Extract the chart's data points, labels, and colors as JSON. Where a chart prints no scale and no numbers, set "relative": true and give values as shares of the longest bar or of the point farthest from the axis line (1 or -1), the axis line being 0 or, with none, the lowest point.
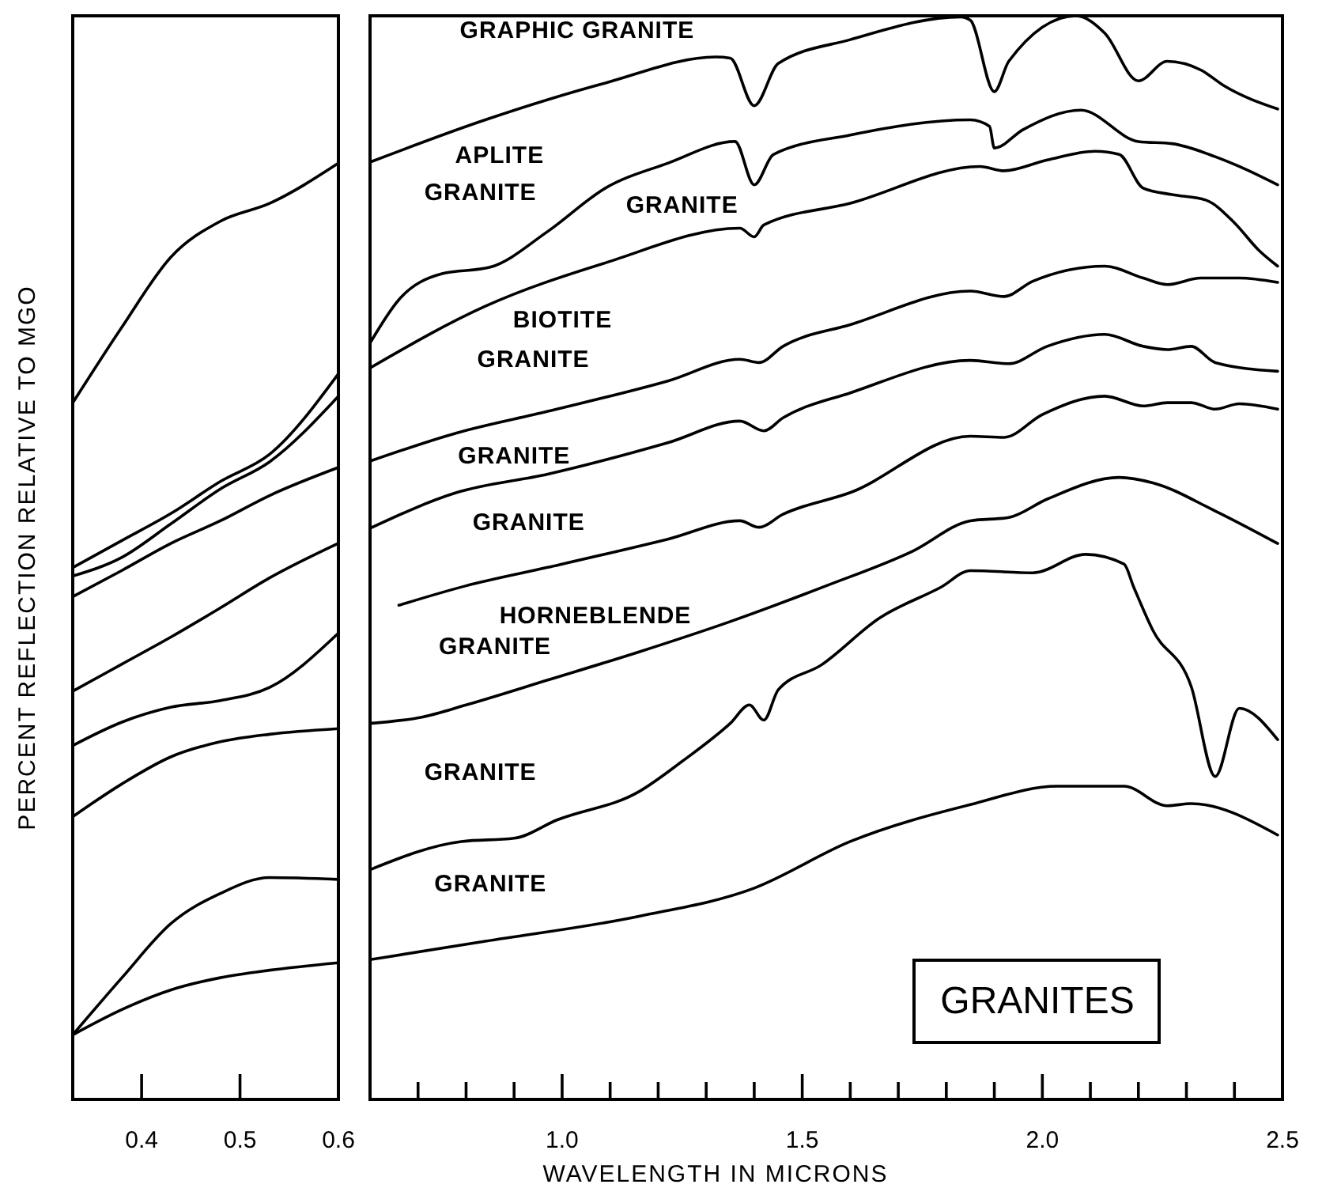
{
  "chart_data": [
    {
      "type": "line",
      "relative": true,
      "ylabel": "PERCENT REFLECTION RELATIVE TO MGO",
      "xlim": [
        0.33,
        0.6
      ],
      "xticks": [
        0.4,
        0.5,
        0.6
      ],
      "x": [
        0.33,
        0.38,
        0.43,
        0.48,
        0.53,
        0.6
      ],
      "series": [
        {
          "color": "#000000",
          "values": [
            0.744,
            0.825,
            0.9,
            0.938,
            0.957,
            1.0
          ]
        },
        {
          "color": "#000000",
          "values": [
            0.568,
            0.597,
            0.626,
            0.66,
            0.689,
            0.775
          ]
        },
        {
          "color": "#000000",
          "values": [
            0.559,
            0.579,
            0.615,
            0.652,
            0.681,
            0.751
          ]
        },
        {
          "color": "#000000",
          "values": [
            0.537,
            0.565,
            0.594,
            0.618,
            0.645,
            0.675
          ]
        },
        {
          "color": "#000000",
          "values": [
            0.436,
            0.465,
            0.494,
            0.525,
            0.557,
            0.594
          ]
        },
        {
          "color": "#000000",
          "values": [
            0.378,
            0.403,
            0.419,
            0.426,
            0.44,
            0.498
          ]
        },
        {
          "color": "#000000",
          "values": [
            0.302,
            0.337,
            0.366,
            0.382,
            0.39,
            0.396
          ]
        },
        {
          "color": "#000000",
          "values": [
            0.069,
            0.13,
            0.188,
            0.22,
            0.237,
            0.235
          ]
        },
        {
          "color": "#000000",
          "values": [
            0.069,
            0.096,
            0.117,
            0.13,
            0.138,
            0.146
          ]
        }
      ]
    },
    {
      "type": "line",
      "relative": true,
      "title": "GRANITES",
      "xlabel": "WAVELENGTH IN MICRONS",
      "xlim": [
        0.6,
        2.5
      ],
      "xticks": [
        {
          "value": 0.7,
          "label": null
        },
        {
          "value": 0.8,
          "label": null
        },
        {
          "value": 0.9,
          "label": null
        },
        {
          "value": 1.0,
          "label": "1.0"
        },
        {
          "value": 1.1,
          "label": null
        },
        {
          "value": 1.2,
          "label": null
        },
        {
          "value": 1.3,
          "label": null
        },
        {
          "value": 1.4,
          "label": null
        },
        1.5,
        {
          "value": 1.6,
          "label": null
        },
        {
          "value": 1.7,
          "label": null
        },
        {
          "value": 1.8,
          "label": null
        },
        {
          "value": 1.9,
          "label": null
        },
        {
          "value": 2.0,
          "label": "2.0"
        },
        {
          "value": 2.1,
          "label": null
        },
        {
          "value": 2.2,
          "label": null
        },
        {
          "value": 2.3,
          "label": null
        },
        {
          "value": 2.4,
          "label": null
        },
        2.5
      ],
      "series": [
        {
          "color": "#000000",
          "x": [
            0.6,
            0.84,
            1.09,
            1.32,
            1.35,
            1.4,
            1.45,
            1.6,
            1.83,
            1.85,
            1.9,
            1.93,
            2.07,
            2.13,
            2.2,
            2.26,
            2.33,
            2.38,
            2.49
          ],
          "values": [
            0.865,
            0.904,
            0.938,
            0.962,
            0.961,
            0.917,
            0.956,
            0.978,
            0.999,
            0.996,
            0.93,
            0.958,
            1.0,
            0.984,
            0.94,
            0.958,
            0.95,
            0.935,
            0.914
          ]
        },
        {
          "color": "#000000",
          "x": [
            0.6,
            0.66,
            0.75,
            0.85,
            0.97,
            1.09,
            1.22,
            1.36,
            1.4,
            1.44,
            1.6,
            1.85,
            1.89,
            1.9,
            1.96,
            2.08,
            2.2,
            2.27,
            2.36,
            2.41,
            2.49
          ],
          "values": [
            0.698,
            0.738,
            0.762,
            0.768,
            0.801,
            0.841,
            0.864,
            0.884,
            0.844,
            0.872,
            0.89,
            0.904,
            0.898,
            0.878,
            0.895,
            0.913,
            0.884,
            0.882,
            0.87,
            0.861,
            0.844
          ]
        },
        {
          "color": "#000000",
          "x": [
            0.6,
            0.84,
            1.09,
            1.37,
            1.4,
            1.42,
            1.6,
            1.87,
            1.92,
            2.01,
            2.11,
            2.16,
            2.21,
            2.27,
            2.34,
            2.4,
            2.45,
            2.49
          ],
          "values": [
            0.675,
            0.732,
            0.772,
            0.804,
            0.796,
            0.807,
            0.827,
            0.861,
            0.857,
            0.867,
            0.875,
            0.872,
            0.841,
            0.835,
            0.83,
            0.809,
            0.784,
            0.769
          ]
        },
        {
          "color": "#000000",
          "x": [
            0.6,
            0.78,
            0.97,
            1.22,
            1.37,
            1.41,
            1.46,
            1.6,
            1.85,
            1.92,
            1.98,
            2.13,
            2.21,
            2.26,
            2.33,
            2.41,
            2.49
          ],
          "values": [
            0.589,
            0.615,
            0.635,
            0.663,
            0.683,
            0.68,
            0.695,
            0.715,
            0.746,
            0.741,
            0.755,
            0.769,
            0.758,
            0.752,
            0.758,
            0.758,
            0.754
          ]
        },
        {
          "color": "#000000",
          "x": [
            0.6,
            0.78,
            0.97,
            1.22,
            1.37,
            1.42,
            1.46,
            1.6,
            1.85,
            1.93,
            2.01,
            2.13,
            2.21,
            2.26,
            2.31,
            2.36,
            2.49
          ],
          "values": [
            0.527,
            0.56,
            0.577,
            0.606,
            0.626,
            0.617,
            0.629,
            0.652,
            0.682,
            0.679,
            0.695,
            0.706,
            0.695,
            0.692,
            0.695,
            0.68,
            0.672
          ]
        },
        {
          "color": "#000000",
          "x": [
            0.66,
            0.8,
            0.97,
            1.22,
            1.37,
            1.41,
            1.46,
            1.6,
            1.85,
            1.92,
            2.0,
            2.13,
            2.21,
            2.26,
            2.31,
            2.36,
            2.41,
            2.49
          ],
          "values": [
            0.456,
            0.474,
            0.491,
            0.517,
            0.534,
            0.528,
            0.54,
            0.56,
            0.612,
            0.611,
            0.632,
            0.649,
            0.64,
            0.643,
            0.643,
            0.637,
            0.642,
            0.637
          ]
        },
        {
          "color": "#000000",
          "x": [
            0.6,
            0.71,
            0.8,
            0.97,
            1.16,
            1.35,
            1.55,
            1.73,
            1.85,
            1.93,
            2.01,
            2.16,
            2.23,
            2.36,
            2.49
          ],
          "values": [
            0.347,
            0.353,
            0.364,
            0.387,
            0.413,
            0.441,
            0.474,
            0.506,
            0.534,
            0.537,
            0.554,
            0.574,
            0.569,
            0.543,
            0.513
          ]
        },
        {
          "color": "#000000",
          "x": [
            0.6,
            0.79,
            0.9,
            0.99,
            1.16,
            1.25,
            1.35,
            1.39,
            1.42,
            1.45,
            1.54,
            1.66,
            1.79,
            1.85,
            1.98,
            2.09,
            2.17,
            2.19,
            2.23,
            2.31,
            2.36,
            2.41,
            2.49
          ],
          "values": [
            0.212,
            0.238,
            0.241,
            0.258,
            0.284,
            0.312,
            0.347,
            0.364,
            0.35,
            0.378,
            0.401,
            0.444,
            0.473,
            0.488,
            0.486,
            0.503,
            0.494,
            0.473,
            0.433,
            0.381,
            0.298,
            0.361,
            0.332
          ]
        },
        {
          "color": "#000000",
          "x": [
            0.6,
            0.84,
            1.16,
            1.4,
            1.6,
            1.85,
            2.03,
            2.17,
            2.26,
            2.31,
            2.49
          ],
          "values": [
            0.129,
            0.146,
            0.169,
            0.195,
            0.238,
            0.272,
            0.289,
            0.289,
            0.271,
            0.273,
            0.244
          ]
        }
      ],
      "annotations": [
        "GRAPHIC GRANITE",
        "APLITE",
        "GRANITE",
        "GRANITE",
        "BIOTITE",
        "GRANITE",
        "GRANITE",
        "GRANITE",
        "HORNEBLENDE",
        "GRANITE",
        "GRANITE",
        "GRANITE"
      ]
    }
  ]
}
